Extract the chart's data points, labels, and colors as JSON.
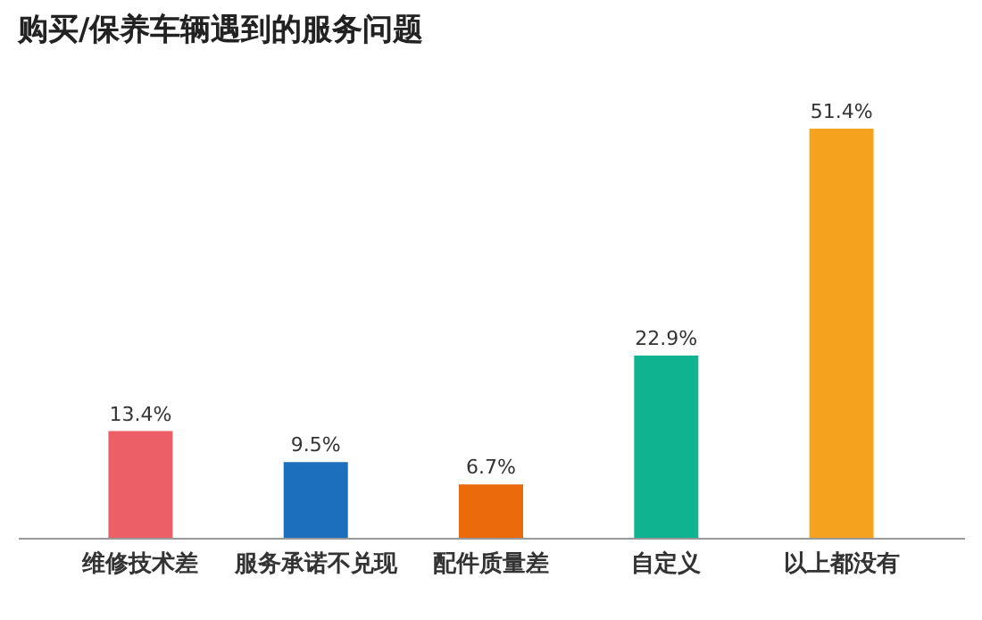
{
  "chart_data": {
    "type": "bar",
    "title": "购买/保养车辆遇到的服务问题",
    "categories": [
      "维修技术差",
      "服务承诺不兑现",
      "配件质量差",
      "自定义",
      "以上都没有"
    ],
    "values": [
      13.4,
      9.5,
      6.7,
      22.9,
      51.4
    ],
    "colors": [
      "#ec5f67",
      "#1b6fbd",
      "#ea6a0c",
      "#10b38f",
      "#f5a31f"
    ],
    "value_labels": [
      "13.4%",
      "9.5%",
      "6.7%",
      "22.9%",
      "51.4%"
    ],
    "grid": false
  }
}
